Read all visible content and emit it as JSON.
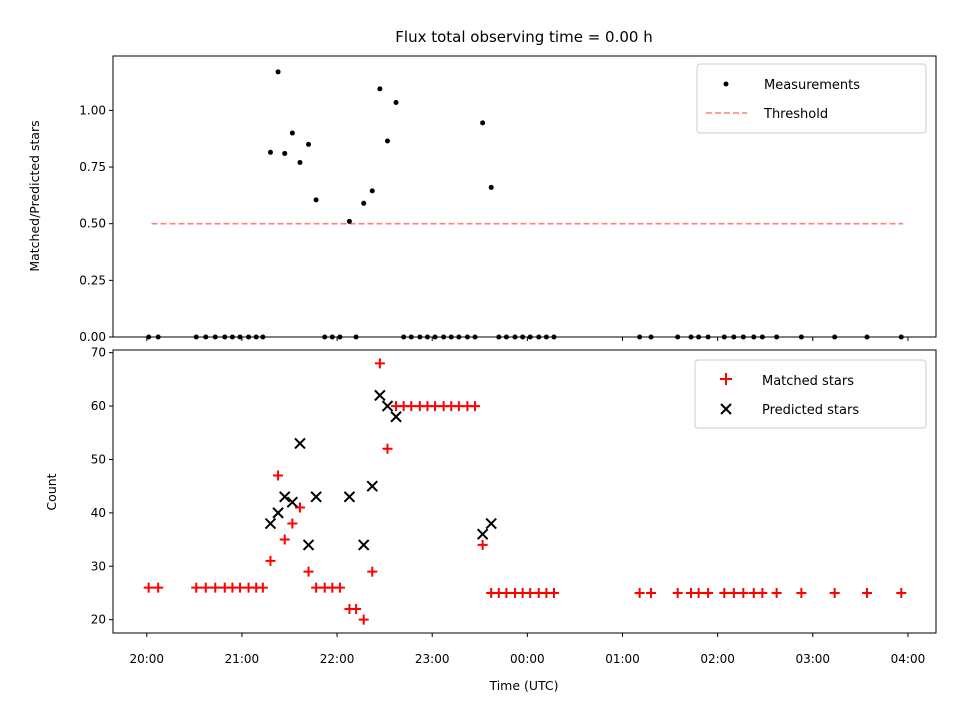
{
  "title": "Flux total observing time = 0.00 h",
  "colors": {
    "threshold": "#ff7f7f",
    "matched": "#ff0000",
    "predicted": "#000000",
    "measurement": "#000000"
  },
  "chart_data": [
    {
      "type": "scatter",
      "title": "Flux total observing time = 0.00 h",
      "xlabel": "",
      "ylabel": "Matched/Predicted stars",
      "ylim": [
        0,
        1.24
      ],
      "yticks": [
        "0.00",
        "0.25",
        "0.50",
        "0.75",
        "1.00"
      ],
      "ytick_values": [
        0,
        0.25,
        0.5,
        0.75,
        1.0
      ],
      "xlim_hours": [
        19.645,
        28.295
      ],
      "legend_position": "top-right",
      "threshold": {
        "name": "Threshold",
        "x": [
          20.05,
          27.95
        ],
        "y": 0.5,
        "style": "dashed"
      },
      "series": [
        {
          "name": "Measurements",
          "marker": "dot",
          "points": [
            [
              20.02,
              0
            ],
            [
              20.12,
              0
            ],
            [
              20.52,
              0
            ],
            [
              20.62,
              0
            ],
            [
              20.72,
              0
            ],
            [
              20.82,
              0
            ],
            [
              20.9,
              0
            ],
            [
              20.98,
              0
            ],
            [
              21.07,
              0
            ],
            [
              21.15,
              0
            ],
            [
              21.22,
              0
            ],
            [
              21.3,
              0.815
            ],
            [
              21.38,
              1.17
            ],
            [
              21.45,
              0.81
            ],
            [
              21.53,
              0.9
            ],
            [
              21.61,
              0.77
            ],
            [
              21.7,
              0.85
            ],
            [
              21.78,
              0.605
            ],
            [
              21.87,
              0
            ],
            [
              21.95,
              0
            ],
            [
              22.03,
              0
            ],
            [
              22.13,
              0.51
            ],
            [
              22.2,
              0
            ],
            [
              22.28,
              0.59
            ],
            [
              22.37,
              0.645
            ],
            [
              22.45,
              1.095
            ],
            [
              22.53,
              0.865
            ],
            [
              22.62,
              1.035
            ],
            [
              22.7,
              0
            ],
            [
              22.78,
              0
            ],
            [
              22.87,
              0
            ],
            [
              22.95,
              0
            ],
            [
              23.03,
              0
            ],
            [
              23.12,
              0
            ],
            [
              23.2,
              0
            ],
            [
              23.28,
              0
            ],
            [
              23.37,
              0
            ],
            [
              23.45,
              0
            ],
            [
              23.53,
              0.945
            ],
            [
              23.62,
              0.66
            ],
            [
              23.7,
              0
            ],
            [
              23.78,
              0
            ],
            [
              23.87,
              0
            ],
            [
              23.95,
              0
            ],
            [
              24.03,
              0
            ],
            [
              24.12,
              0
            ],
            [
              24.2,
              0
            ],
            [
              24.28,
              0
            ],
            [
              25.18,
              0
            ],
            [
              25.3,
              0
            ],
            [
              25.58,
              0
            ],
            [
              25.72,
              0
            ],
            [
              25.8,
              0
            ],
            [
              25.9,
              0
            ],
            [
              26.07,
              0
            ],
            [
              26.17,
              0
            ],
            [
              26.27,
              0
            ],
            [
              26.38,
              0
            ],
            [
              26.47,
              0
            ],
            [
              26.62,
              0
            ],
            [
              26.88,
              0
            ],
            [
              27.23,
              0
            ],
            [
              27.57,
              0
            ],
            [
              27.93,
              0
            ]
          ]
        }
      ]
    },
    {
      "type": "scatter",
      "xlabel": "Time (UTC)",
      "ylabel": "Count",
      "ylim": [
        17.5,
        70.5
      ],
      "yticks": [
        "20",
        "30",
        "40",
        "50",
        "60",
        "70"
      ],
      "ytick_values": [
        20,
        30,
        40,
        50,
        60,
        70
      ],
      "xlim_hours": [
        19.645,
        28.295
      ],
      "xticks": [
        "20:00",
        "21:00",
        "22:00",
        "23:00",
        "00:00",
        "01:00",
        "02:00",
        "03:00",
        "04:00"
      ],
      "xtick_values_hours": [
        20,
        21,
        22,
        23,
        24,
        25,
        26,
        27,
        28
      ],
      "legend_position": "top-right",
      "series": [
        {
          "name": "Matched stars",
          "marker": "plus",
          "points": [
            [
              20.02,
              26
            ],
            [
              20.12,
              26
            ],
            [
              20.52,
              26
            ],
            [
              20.62,
              26
            ],
            [
              20.72,
              26
            ],
            [
              20.82,
              26
            ],
            [
              20.9,
              26
            ],
            [
              20.98,
              26
            ],
            [
              21.07,
              26
            ],
            [
              21.15,
              26
            ],
            [
              21.22,
              26
            ],
            [
              21.3,
              31
            ],
            [
              21.38,
              47
            ],
            [
              21.45,
              35
            ],
            [
              21.53,
              38
            ],
            [
              21.61,
              41
            ],
            [
              21.7,
              29
            ],
            [
              21.78,
              26
            ],
            [
              21.87,
              26
            ],
            [
              21.95,
              26
            ],
            [
              22.03,
              26
            ],
            [
              22.13,
              22
            ],
            [
              22.2,
              22
            ],
            [
              22.28,
              20
            ],
            [
              22.37,
              29
            ],
            [
              22.45,
              68
            ],
            [
              22.53,
              52
            ],
            [
              22.62,
              60
            ],
            [
              22.7,
              60
            ],
            [
              22.78,
              60
            ],
            [
              22.87,
              60
            ],
            [
              22.95,
              60
            ],
            [
              23.03,
              60
            ],
            [
              23.12,
              60
            ],
            [
              23.2,
              60
            ],
            [
              23.28,
              60
            ],
            [
              23.37,
              60
            ],
            [
              23.45,
              60
            ],
            [
              23.53,
              34
            ],
            [
              23.62,
              25
            ],
            [
              23.7,
              25
            ],
            [
              23.78,
              25
            ],
            [
              23.87,
              25
            ],
            [
              23.95,
              25
            ],
            [
              24.03,
              25
            ],
            [
              24.12,
              25
            ],
            [
              24.2,
              25
            ],
            [
              24.28,
              25
            ],
            [
              25.18,
              25
            ],
            [
              25.3,
              25
            ],
            [
              25.58,
              25
            ],
            [
              25.72,
              25
            ],
            [
              25.8,
              25
            ],
            [
              25.9,
              25
            ],
            [
              26.07,
              25
            ],
            [
              26.17,
              25
            ],
            [
              26.27,
              25
            ],
            [
              26.38,
              25
            ],
            [
              26.47,
              25
            ],
            [
              26.62,
              25
            ],
            [
              26.88,
              25
            ],
            [
              27.23,
              25
            ],
            [
              27.57,
              25
            ],
            [
              27.93,
              25
            ]
          ]
        },
        {
          "name": "Predicted stars",
          "marker": "x",
          "points": [
            [
              21.3,
              38
            ],
            [
              21.38,
              40
            ],
            [
              21.45,
              43
            ],
            [
              21.53,
              42
            ],
            [
              21.61,
              53
            ],
            [
              21.7,
              34
            ],
            [
              21.78,
              43
            ],
            [
              22.13,
              43
            ],
            [
              22.28,
              34
            ],
            [
              22.37,
              45
            ],
            [
              22.45,
              62
            ],
            [
              22.53,
              60
            ],
            [
              22.62,
              58
            ],
            [
              23.53,
              36
            ],
            [
              23.62,
              38
            ]
          ]
        }
      ]
    }
  ]
}
